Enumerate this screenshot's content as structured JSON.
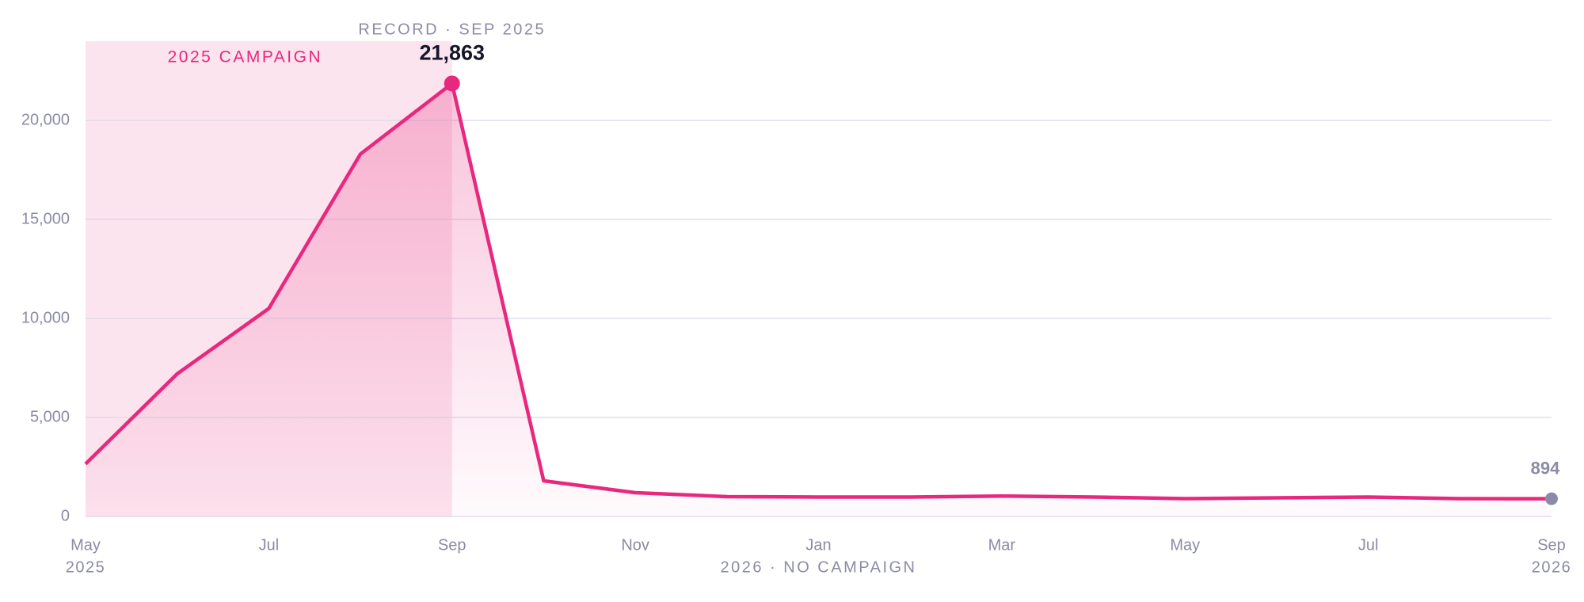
{
  "chart_data": {
    "type": "line",
    "categories": [
      "May",
      null,
      "Jul",
      null,
      "Sep",
      null,
      "Nov",
      null,
      "Jan",
      null,
      "Mar",
      null,
      "May",
      null,
      "Jul",
      null,
      "Sep"
    ],
    "x_start_year": "2025",
    "x_end_year": "2026",
    "values": [
      2650,
      7200,
      10500,
      18300,
      21863,
      1800,
      1200,
      1000,
      980,
      980,
      1030,
      980,
      900,
      940,
      980,
      900,
      894
    ],
    "value_labels": [
      null,
      null,
      null,
      null,
      "21,863",
      null,
      null,
      null,
      null,
      null,
      null,
      null,
      null,
      null,
      null,
      null,
      "894"
    ],
    "color": "#e8287e",
    "end_marker_color": "#8b8ba7",
    "ylim": [
      0,
      24000
    ],
    "yticks": [
      0,
      {
        "value": 5000,
        "label": "5,000"
      },
      {
        "value": 10000,
        "label": "10,000"
      },
      {
        "value": 15000,
        "label": "15,000"
      },
      {
        "value": 20000,
        "label": "20,000"
      }
    ],
    "grid": true,
    "highlight": {
      "label": "2025 CAMPAIGN",
      "start": 0,
      "end": 4,
      "color": "#fce4ee"
    },
    "peak_annotation": "RECORD · SEP 2025",
    "x_annotation": "2026 · NO CAMPAIGN"
  }
}
